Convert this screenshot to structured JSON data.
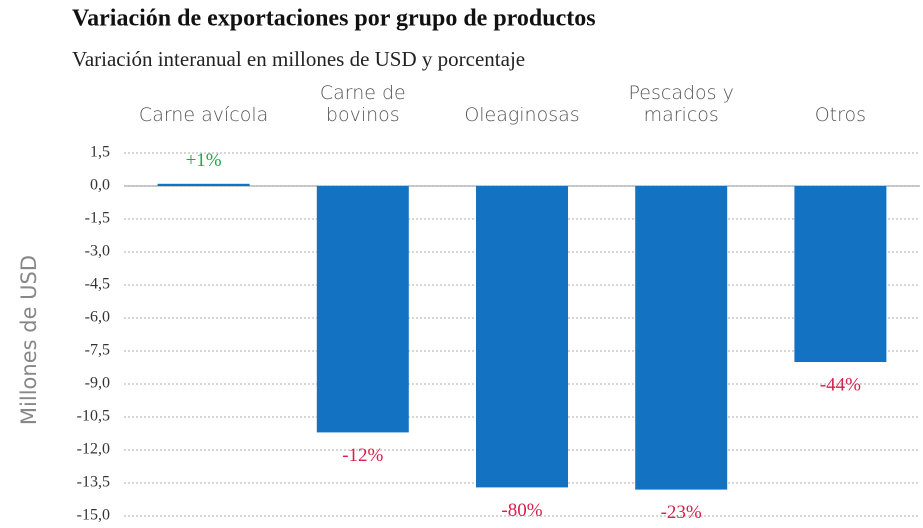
{
  "chart_data": {
    "type": "bar",
    "title": "Variación de exportaciones por grupo de productos",
    "subtitle": "Variación interanual en millones de USD y porcentaje",
    "y_axis_label": "Millones de USD",
    "categories": [
      "Carne avícola",
      "Carne de\nbovinos",
      "Oleaginosas",
      "Pescados y\nmaricos",
      "Otros"
    ],
    "values": [
      0.1,
      -11.2,
      -13.7,
      -13.8,
      -8.0
    ],
    "color": "#1472c2",
    "annotations": [
      {
        "text": "+1%",
        "color": "#1aa84a"
      },
      {
        "text": "-12%",
        "color": "#d6204c"
      },
      {
        "text": "-80%",
        "color": "#d6204c"
      },
      {
        "text": "-23%",
        "color": "#d6204c"
      },
      {
        "text": "-44%",
        "color": "#d6204c"
      }
    ],
    "ylim": [
      -15,
      1.5
    ],
    "yticks": [
      {
        "value": 1.5,
        "label": "1,5"
      },
      {
        "value": 0,
        "label": "0,0"
      },
      {
        "value": -1.5,
        "label": "-1,5"
      },
      {
        "value": -3,
        "label": "-3,0"
      },
      {
        "value": -4.5,
        "label": "-4,5"
      },
      {
        "value": -6,
        "label": "-6,0"
      },
      {
        "value": -7.5,
        "label": "-7,5"
      },
      {
        "value": -9,
        "label": "-9,0"
      },
      {
        "value": -10.5,
        "label": "-10,5"
      },
      {
        "value": -12,
        "label": "-12,0"
      },
      {
        "value": -13.5,
        "label": "-13,5"
      },
      {
        "value": -15,
        "label": "-15,0"
      }
    ],
    "grid": true
  }
}
